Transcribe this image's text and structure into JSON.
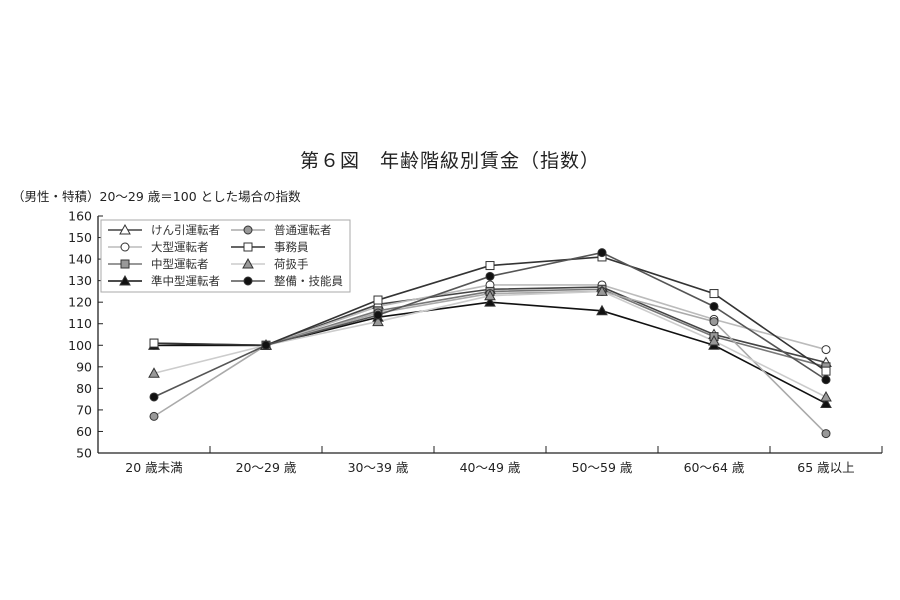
{
  "chart_data": {
    "type": "line",
    "title": "第６図　年齢階級別賃金（指数）",
    "ylabel": "（男性・特積）20～29 歳＝100 とした場合の指数",
    "xlabel": "",
    "categories": [
      "20 歳未満",
      "20～29 歳",
      "30～39 歳",
      "40～49 歳",
      "50～59 歳",
      "60～64 歳",
      "65 歳以上"
    ],
    "ylim": [
      50,
      160
    ],
    "yticks": [
      50,
      60,
      70,
      80,
      90,
      100,
      110,
      120,
      130,
      140,
      150,
      160
    ],
    "grid": false,
    "legend_placement": "top-left",
    "series": [
      {
        "name": "けん引運転者",
        "values": [
          100,
          100,
          119,
          126,
          127,
          105,
          92
        ],
        "line_color": "#444444",
        "marker": "triangle",
        "marker_fill": "#ffffff"
      },
      {
        "name": "大型運転者",
        "values": [
          100,
          100,
          118,
          128,
          128,
          112,
          98
        ],
        "line_color": "#bbbbbb",
        "marker": "circle",
        "marker_fill": "#ffffff"
      },
      {
        "name": "中型運転者",
        "values": [
          101,
          100,
          116,
          125,
          126,
          104,
          90
        ],
        "line_color": "#777777",
        "marker": "square",
        "marker_fill": "#999999"
      },
      {
        "name": "準中型運転者",
        "values": [
          100,
          100,
          113,
          120,
          116,
          100,
          73
        ],
        "line_color": "#111111",
        "marker": "triangle",
        "marker_fill": "#111111"
      },
      {
        "name": "普通運転者",
        "values": [
          67,
          100,
          115,
          124,
          125,
          111,
          59
        ],
        "line_color": "#aaaaaa",
        "marker": "circle",
        "marker_fill": "#999999"
      },
      {
        "name": "事務員",
        "values": [
          101,
          100,
          121,
          137,
          141,
          124,
          88
        ],
        "line_color": "#333333",
        "marker": "square",
        "marker_fill": "#ffffff"
      },
      {
        "name": "荷扱手",
        "values": [
          87,
          100,
          111,
          123,
          125,
          102,
          76
        ],
        "line_color": "#cccccc",
        "marker": "triangle",
        "marker_fill": "#999999"
      },
      {
        "name": "整備・技能員",
        "values": [
          76,
          100,
          114,
          132,
          143,
          118,
          84
        ],
        "line_color": "#555555",
        "marker": "circle",
        "marker_fill": "#111111"
      }
    ]
  }
}
